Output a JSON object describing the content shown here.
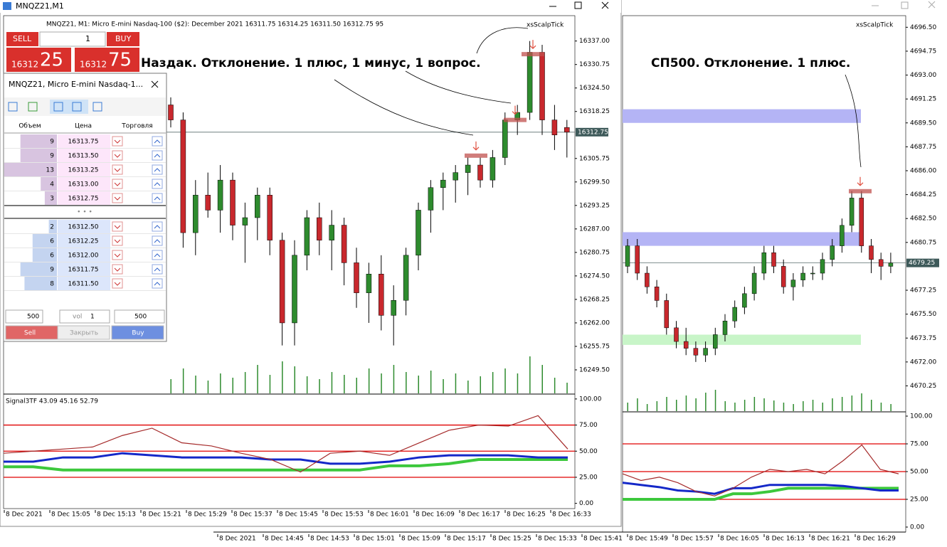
{
  "left_window": {
    "title": "MNQZ21,M1",
    "one_click": {
      "sell": "SELL",
      "buy": "BUY",
      "lots": "1",
      "bid_prefix": "16312",
      "bid_pips": "25",
      "ask_prefix": "16312",
      "ask_pips": "75"
    },
    "chart": {
      "header": "MNQZ21, M1:  Micro E-mini Nasdaq-100 ($2): December 2021  16311.75 16314.25 16311.50 16312.75  95",
      "tool": "xsScalpTick",
      "annotation": "Наздак. Отклонение. 1 плюс, 1 минус, 1 вопрос.",
      "ylim": [
        16243.25,
        16343.75
      ],
      "yticks": [
        {
          "value": 16337,
          "label": "16337.00"
        },
        {
          "value": 16330.75,
          "label": "16330.75"
        },
        {
          "value": 16324.5,
          "label": "16324.50"
        },
        {
          "value": 16318.25,
          "label": "16318.25"
        },
        {
          "value": 16305.75,
          "label": "16305.75"
        },
        {
          "value": 16299.5,
          "label": "16299.50"
        },
        {
          "value": 16293.25,
          "label": "16293.25"
        },
        {
          "value": 16287,
          "label": "16287.00"
        },
        {
          "value": 16280.75,
          "label": "16280.75"
        },
        {
          "value": 16274.5,
          "label": "16274.50"
        },
        {
          "value": 16268.25,
          "label": "16268.25"
        },
        {
          "value": 16262,
          "label": "16262.00"
        },
        {
          "value": 16255.75,
          "label": "16255.75"
        },
        {
          "value": 16249.5,
          "label": "16249.50"
        }
      ],
      "current_price": {
        "value": 16312.75,
        "label": "16312.75"
      },
      "ohlc": [
        [
          16320,
          16322,
          16314,
          16316
        ],
        [
          16316,
          16318,
          16282,
          16286
        ],
        [
          16286,
          16300,
          16280,
          16296
        ],
        [
          16296,
          16302,
          16290,
          16292
        ],
        [
          16292,
          16304,
          16286,
          16300
        ],
        [
          16300,
          16302,
          16284,
          16288
        ],
        [
          16288,
          16294,
          16278,
          16290
        ],
        [
          16290,
          16298,
          16284,
          16296
        ],
        [
          16296,
          16298,
          16280,
          16284
        ],
        [
          16284,
          16286,
          16256,
          16262
        ],
        [
          16262,
          16284,
          16256,
          16280
        ],
        [
          16280,
          16292,
          16276,
          16290
        ],
        [
          16290,
          16294,
          16280,
          16284
        ],
        [
          16284,
          16292,
          16276,
          16288
        ],
        [
          16288,
          16290,
          16272,
          16278
        ],
        [
          16278,
          16282,
          16266,
          16270
        ],
        [
          16270,
          16278,
          16262,
          16275
        ],
        [
          16275,
          16280,
          16260,
          16264
        ],
        [
          16264,
          16272,
          16256,
          16268
        ],
        [
          16268,
          16282,
          16264,
          16280
        ],
        [
          16280,
          16294,
          16276,
          16292
        ],
        [
          16292,
          16300,
          16286,
          16298
        ],
        [
          16298,
          16302,
          16292,
          16300
        ],
        [
          16300,
          16304,
          16294,
          16302
        ],
        [
          16302,
          16306,
          16296,
          16304
        ],
        [
          16304,
          16306,
          16298,
          16300
        ],
        [
          16300,
          16308,
          16298,
          16306
        ],
        [
          16306,
          16318,
          16304,
          16316
        ],
        [
          16316,
          16320,
          16312,
          16318
        ],
        [
          16318,
          16337,
          16316,
          16334
        ],
        [
          16334,
          16336,
          16312,
          16316
        ],
        [
          16316,
          16320,
          16308,
          16312
        ],
        [
          16314,
          16316,
          16306,
          16312.75
        ]
      ],
      "volumes": [
        20,
        35,
        25,
        18,
        28,
        22,
        30,
        40,
        26,
        45,
        38,
        24,
        20,
        30,
        26,
        22,
        35,
        28,
        40,
        30,
        25,
        32,
        20,
        28,
        18,
        24,
        30,
        35,
        28,
        52,
        40,
        22,
        15
      ],
      "signal_levels": [
        16306.5,
        16316,
        16333.5
      ],
      "xlabels": [
        "8 Dec 2021",
        "8 Dec 15:05",
        "8 Dec 15:13",
        "8 Dec 15:21",
        "8 Dec 15:29",
        "8 Dec 15:37",
        "8 Dec 15:45",
        "8 Dec 15:53",
        "8 Dec 16:01",
        "8 Dec 16:09",
        "8 Dec 16:17",
        "8 Dec 16:25",
        "8 Dec 16:33"
      ],
      "indicator": {
        "label": "Signal3TF 43.09 45.16 52.79",
        "ylim": [
          -5,
          104
        ],
        "yticks": [
          {
            "value": 100,
            "label": "100.00"
          },
          {
            "value": 75,
            "label": "75.00"
          },
          {
            "value": 50,
            "label": "50.00"
          },
          {
            "value": 25,
            "label": "25.00"
          },
          {
            "value": 0,
            "label": "0.00"
          }
        ],
        "levels": [
          25,
          50,
          75
        ],
        "series": [
          {
            "color": "#a52a2a",
            "values": [
              48,
              50,
              52,
              54,
              65,
              72,
              58,
              55,
              48,
              42,
              30,
              48,
              50,
              46,
              58,
              70,
              75,
              74,
              84,
              52
            ]
          },
          {
            "color": "#1428c8",
            "values": [
              40,
              40,
              44,
              44,
              48,
              46,
              44,
              44,
              44,
              42,
              42,
              38,
              38,
              40,
              44,
              46,
              46,
              46,
              44,
              44
            ]
          },
          {
            "color": "#3cc83c",
            "values": [
              35,
              35,
              32,
              32,
              32,
              32,
              32,
              32,
              32,
              32,
              32,
              32,
              32,
              36,
              36,
              38,
              42,
              42,
              42,
              42
            ]
          }
        ]
      }
    }
  },
  "right_window": {
    "chart": {
      "tool": "xsScalpTick",
      "annotation": "СП500. Отклонение. 1 плюс.",
      "ylim": [
        4668.4,
        4697.35
      ],
      "yticks": [
        {
          "value": 4696.5,
          "label": "4696.50"
        },
        {
          "value": 4694.75,
          "label": "4694.75"
        },
        {
          "value": 4693,
          "label": "4693.00"
        },
        {
          "value": 4691.25,
          "label": "4691.25"
        },
        {
          "value": 4689.5,
          "label": "4689.50"
        },
        {
          "value": 4687.75,
          "label": "4687.75"
        },
        {
          "value": 4686,
          "label": "4686.00"
        },
        {
          "value": 4684.25,
          "label": "4684.25"
        },
        {
          "value": 4682.5,
          "label": "4682.50"
        },
        {
          "value": 4680.75,
          "label": "4680.75"
        },
        {
          "value": 4677.25,
          "label": "4677.25"
        },
        {
          "value": 4675.5,
          "label": "4675.50"
        },
        {
          "value": 4673.75,
          "label": "4673.75"
        },
        {
          "value": 4672,
          "label": "4672.00"
        },
        {
          "value": 4670.25,
          "label": "4670.25"
        }
      ],
      "current_price": {
        "value": 4679.25,
        "label": "4679.25"
      },
      "zones": [
        {
          "from": 4690.5,
          "to": 4689.5,
          "color": "#b4b4f5"
        },
        {
          "from": 4681.5,
          "to": 4680.5,
          "color": "#b4b4f5"
        },
        {
          "from": 4674,
          "to": 4673.25,
          "color": "#c8f5c8"
        }
      ],
      "ohlc": [
        [
          4679,
          4681,
          4678.5,
          4680.5
        ],
        [
          4680.5,
          4681,
          4678,
          4678.5
        ],
        [
          4678.5,
          4679,
          4677,
          4677.5
        ],
        [
          4677.5,
          4678,
          4676,
          4676.5
        ],
        [
          4676.5,
          4677,
          4674,
          4674.5
        ],
        [
          4674.5,
          4675,
          4673,
          4673.5
        ],
        [
          4673.5,
          4674.5,
          4672.5,
          4673
        ],
        [
          4673,
          4673.5,
          4672,
          4672.5
        ],
        [
          4672.5,
          4673.5,
          4672,
          4673
        ],
        [
          4673,
          4674.5,
          4672.5,
          4674
        ],
        [
          4674,
          4675.5,
          4673.5,
          4675
        ],
        [
          4675,
          4676.5,
          4674.5,
          4676
        ],
        [
          4676,
          4677.5,
          4675.5,
          4677
        ],
        [
          4677,
          4679,
          4676.5,
          4678.5
        ],
        [
          4678.5,
          4680.5,
          4678,
          4680
        ],
        [
          4680,
          4680.5,
          4678.5,
          4679
        ],
        [
          4679,
          4679.5,
          4677,
          4677.5
        ],
        [
          4677.5,
          4678.5,
          4676.5,
          4678
        ],
        [
          4678,
          4679,
          4677.5,
          4678.5
        ],
        [
          4678.5,
          4679,
          4678,
          4678.5
        ],
        [
          4678.5,
          4680,
          4678,
          4679.5
        ],
        [
          4679.5,
          4681,
          4679,
          4680.5
        ],
        [
          4680.5,
          4682.5,
          4680,
          4682
        ],
        [
          4682,
          4684.5,
          4681.5,
          4684
        ],
        [
          4684,
          4684.5,
          4680,
          4680.5
        ],
        [
          4680.5,
          4681,
          4678.5,
          4679.5
        ],
        [
          4679.5,
          4680,
          4678,
          4679
        ],
        [
          4679,
          4680,
          4678.5,
          4679.25
        ]
      ],
      "volumes": [
        12,
        18,
        10,
        14,
        20,
        16,
        22,
        18,
        26,
        30,
        14,
        12,
        16,
        20,
        18,
        15,
        12,
        10,
        14,
        16,
        12,
        18,
        20,
        22,
        25,
        16,
        12,
        10
      ],
      "signal_levels": [
        4684.5
      ],
      "xlabels": [
        "8 Dec 2021",
        "8 Dec 14:45",
        "8 Dec 14:53",
        "8 Dec 15:01",
        "8 Dec 15:09",
        "8 Dec 15:17",
        "8 Dec 15:25",
        "8 Dec 15:33",
        "8 Dec 15:41",
        "8 Dec 15:49",
        "8 Dec 15:57",
        "8 Dec 16:05",
        "8 Dec 16:13",
        "8 Dec 16:21",
        "8 Dec 16:29"
      ],
      "indicator": {
        "ylim": [
          -4.5,
          103.2
        ],
        "yticks": [
          {
            "value": 100,
            "label": "100.00"
          },
          {
            "value": 75,
            "label": "75.00"
          },
          {
            "value": 50,
            "label": "50.00"
          },
          {
            "value": 25,
            "label": "25.00"
          },
          {
            "value": 0,
            "label": "0.00"
          }
        ],
        "levels": [
          25,
          50,
          75
        ],
        "series": [
          {
            "color": "#a52a2a",
            "values": [
              48,
              42,
              45,
              40,
              32,
              28,
              35,
              45,
              52,
              50,
              52,
              48,
              60,
              74,
              52,
              48
            ]
          },
          {
            "color": "#1428c8",
            "values": [
              40,
              38,
              36,
              33,
              32,
              30,
              35,
              35,
              38,
              38,
              38,
              38,
              37,
              35,
              33,
              33
            ]
          },
          {
            "color": "#3cc83c",
            "values": [
              25,
              25,
              25,
              25,
              25,
              25,
              30,
              30,
              32,
              35,
              35,
              35,
              35,
              35,
              35,
              35
            ]
          }
        ]
      }
    }
  },
  "dom": {
    "title": "MNQZ21, Micro E-mini Nasdaq-1...",
    "headers": [
      "Объем",
      "Цена",
      "Торговля"
    ],
    "asks": [
      {
        "volume": 9,
        "price": "16313.75"
      },
      {
        "volume": 9,
        "price": "16313.50"
      },
      {
        "volume": 13,
        "price": "16313.25"
      },
      {
        "volume": 4,
        "price": "16313.00"
      },
      {
        "volume": 3,
        "price": "16312.75"
      }
    ],
    "separator": "• • •",
    "bids": [
      {
        "volume": 2,
        "price": "16312.50"
      },
      {
        "volume": 6,
        "price": "16312.25"
      },
      {
        "volume": 6,
        "price": "16312.00"
      },
      {
        "volume": 9,
        "price": "16311.75"
      },
      {
        "volume": 8,
        "price": "16311.50"
      }
    ],
    "controls": {
      "qty_left": "500",
      "vol_label": "vol",
      "vol": "1",
      "qty_right": "500",
      "sell": "Sell",
      "close": "Закрыть",
      "buy": "Buy"
    }
  }
}
